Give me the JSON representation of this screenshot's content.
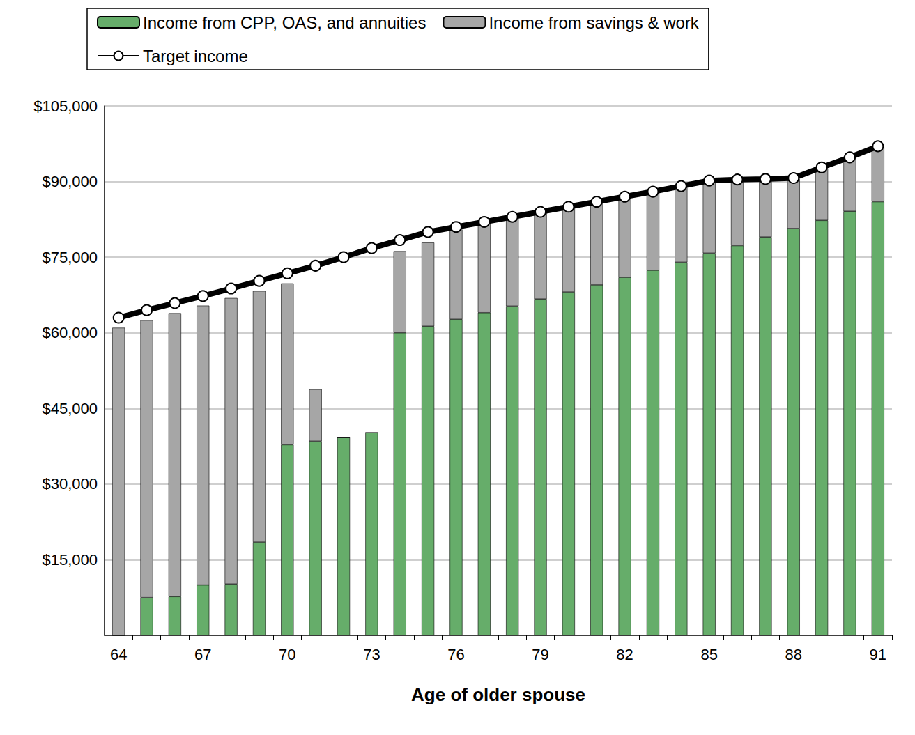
{
  "chart_data": {
    "type": "bar",
    "stacked": true,
    "x_label": "Age of older spouse",
    "categories": [
      64,
      null,
      null,
      67,
      null,
      null,
      70,
      null,
      null,
      73,
      null,
      null,
      76,
      null,
      null,
      79,
      null,
      null,
      82,
      null,
      null,
      85,
      null,
      null,
      88,
      null,
      null,
      91
    ],
    "series": [
      {
        "name": "Income from CPP, OAS, and annuities",
        "type": "bar",
        "color": "#66ad6a",
        "values": [
          0,
          7500,
          7700,
          10000,
          10200,
          18500,
          37800,
          38500,
          39300,
          40200,
          60000,
          61300,
          62700,
          64000,
          65300,
          66700,
          68100,
          69500,
          71000,
          72400,
          74000,
          75800,
          77300,
          79000,
          80700,
          82300,
          84100,
          86000
        ]
      },
      {
        "name": "Income from savings & work",
        "type": "bar",
        "color": "#a6a6a6",
        "values": [
          61000,
          55000,
          56200,
          55400,
          56700,
          49800,
          32000,
          10300,
          0,
          0,
          16200,
          16600,
          17800,
          17800,
          17500,
          17100,
          16700,
          16300,
          15800,
          15400,
          14800,
          14200,
          13000,
          11300,
          9800,
          10300,
          10500,
          10800
        ]
      },
      {
        "name": "Target income",
        "type": "line",
        "color": "#000000",
        "marker": "circle",
        "values": [
          63000,
          64500,
          65900,
          67300,
          68800,
          70300,
          71800,
          73300,
          75000,
          76800,
          78400,
          80000,
          81000,
          82000,
          83000,
          84000,
          85000,
          86000,
          87000,
          88000,
          89100,
          90200,
          90400,
          90500,
          90700,
          92800,
          94800,
          97000
        ]
      }
    ],
    "ylim": [
      0,
      105000
    ],
    "yticks": [
      {
        "value": 15000,
        "label": "$15,000"
      },
      {
        "value": 30000,
        "label": "$30,000"
      },
      {
        "value": 45000,
        "label": "$45,000"
      },
      {
        "value": 60000,
        "label": "$60,000"
      },
      {
        "value": 75000,
        "label": "$75,000"
      },
      {
        "value": 90000,
        "label": "$90,000"
      },
      {
        "value": 105000,
        "label": "$105,000"
      }
    ],
    "grid": true,
    "legend": "top"
  }
}
